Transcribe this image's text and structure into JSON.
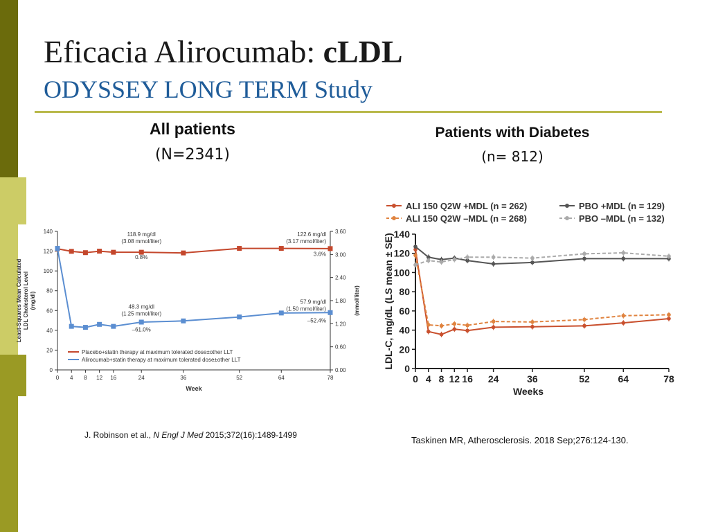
{
  "slide": {
    "title_plain": "Eficacia Alirocumab: ",
    "title_bold": "cLDL",
    "subtitle": "ODYSSEY LONG TERM Study",
    "colors": {
      "sidebar_dark": "#6b6b0c",
      "sidebar_mid": "#9a9a24",
      "sidebar_light": "#cccc66",
      "rule": "#b9b94a",
      "subtitle": "#1f5c99"
    }
  },
  "left_panel": {
    "heading": "All patients",
    "subheading": "(N=2341)",
    "citation_prefix": "J. Robinson et al., ",
    "citation_journal": "N Engl J Med",
    "citation_suffix": " 2015;372(16):1489-1499"
  },
  "right_panel": {
    "heading": "Patients with Diabetes",
    "subheading": "(n= 812)",
    "citation": "Taskinen MR, Atherosclerosis. 2018 Sep;276:124-130."
  },
  "chart_data": [
    {
      "type": "line",
      "xlabel": "Week",
      "ylabel_lines": [
        "Least-Squares Mean Calculated",
        "LDL Cholesterol Level",
        "(mg/dl)"
      ],
      "y2label": "(mmol/liter)",
      "x_ticks": [
        0,
        4,
        8,
        12,
        16,
        24,
        36,
        52,
        64,
        78
      ],
      "xlim": [
        0,
        78
      ],
      "y_ticks": [
        0,
        20,
        40,
        60,
        80,
        100,
        120,
        140
      ],
      "ylim": [
        0,
        140
      ],
      "y2_ticks": [
        "0.00",
        "0.60",
        "1.20",
        "1.80",
        "2.40",
        "3.00",
        "3.60"
      ],
      "grid": false,
      "legend_position": "bottom-left",
      "series": [
        {
          "name": "Placebo+statin therapy at maximum tolerated dose±other LLT",
          "color": "#c4472c",
          "x": [
            0,
            4,
            8,
            12,
            16,
            24,
            36,
            52,
            64,
            78
          ],
          "y": [
            122.4,
            119.8,
            118.5,
            120.0,
            118.9,
            118.9,
            118.2,
            122.8,
            122.8,
            122.6
          ]
        },
        {
          "name": "Alirocumab+statin therapy at maximum tolerated dose±other LLT",
          "color": "#5b8ed1",
          "x": [
            0,
            4,
            8,
            12,
            16,
            24,
            36,
            52,
            64,
            78
          ],
          "y": [
            122.8,
            44.0,
            43.0,
            46.0,
            44.0,
            48.3,
            49.5,
            53.5,
            57.5,
            57.9
          ]
        }
      ],
      "annotations": [
        {
          "lines": [
            "118.9 mg/dl",
            "(3.08 mmol/liter)"
          ],
          "x": 24,
          "y": 135
        },
        {
          "lines": [
            "0.8%"
          ],
          "x": 24,
          "y": 112
        },
        {
          "lines": [
            "122.6 mg/dl",
            "(3.17 mmol/liter)"
          ],
          "x": 78,
          "y": 135
        },
        {
          "lines": [
            "3.6%"
          ],
          "x": 78,
          "y": 115
        },
        {
          "lines": [
            "48.3 mg/dl",
            "(1.25 mmol/liter)"
          ],
          "x": 24,
          "y": 62
        },
        {
          "lines": [
            "–61.0%"
          ],
          "x": 24,
          "y": 39
        },
        {
          "lines": [
            "57.9 mg/dl",
            "(1.50 mmol/liter)"
          ],
          "x": 78,
          "y": 67
        },
        {
          "lines": [
            "–52.4%"
          ],
          "x": 78,
          "y": 48
        }
      ]
    },
    {
      "type": "line",
      "xlabel": "Weeks",
      "ylabel": "LDL-C, mg/dL (LS mean ± SE)",
      "x_ticks": [
        0,
        4,
        8,
        12,
        16,
        24,
        36,
        52,
        64,
        78
      ],
      "xlim": [
        0,
        78
      ],
      "y_ticks": [
        0,
        20,
        40,
        60,
        80,
        100,
        120,
        140
      ],
      "ylim": [
        0,
        140
      ],
      "grid": false,
      "legend_position": "top",
      "series": [
        {
          "name": "ALI 150 Q2W +MDL (n = 262)",
          "color": "#c9502e",
          "style": "solid",
          "x": [
            0,
            4,
            8,
            12,
            16,
            24,
            36,
            52,
            64,
            78
          ],
          "y": [
            124,
            38.5,
            35.5,
            41,
            39.5,
            43,
            43.5,
            44.5,
            47.5,
            52
          ]
        },
        {
          "name": "ALI 150 Q2W –MDL (n = 268)",
          "color": "#e0833f",
          "style": "dashed",
          "x": [
            0,
            4,
            8,
            12,
            16,
            24,
            36,
            52,
            64,
            78
          ],
          "y": [
            118,
            45.5,
            44.5,
            46.5,
            45,
            49,
            48.5,
            51,
            55,
            56
          ]
        },
        {
          "name": "PBO +MDL (n = 129)",
          "color": "#555555",
          "style": "solid",
          "x": [
            0,
            4,
            8,
            12,
            16,
            24,
            36,
            52,
            64,
            78
          ],
          "y": [
            127,
            116,
            113.5,
            115,
            112.5,
            109,
            110.5,
            114.5,
            114.5,
            114.5
          ]
        },
        {
          "name": "PBO –MDL (n = 132)",
          "color": "#aaaaaa",
          "style": "dashed",
          "x": [
            0,
            4,
            8,
            12,
            16,
            24,
            36,
            52,
            64,
            78
          ],
          "y": [
            108,
            112.5,
            111,
            113.5,
            116,
            116,
            115,
            119.5,
            120.5,
            117
          ]
        }
      ]
    }
  ]
}
